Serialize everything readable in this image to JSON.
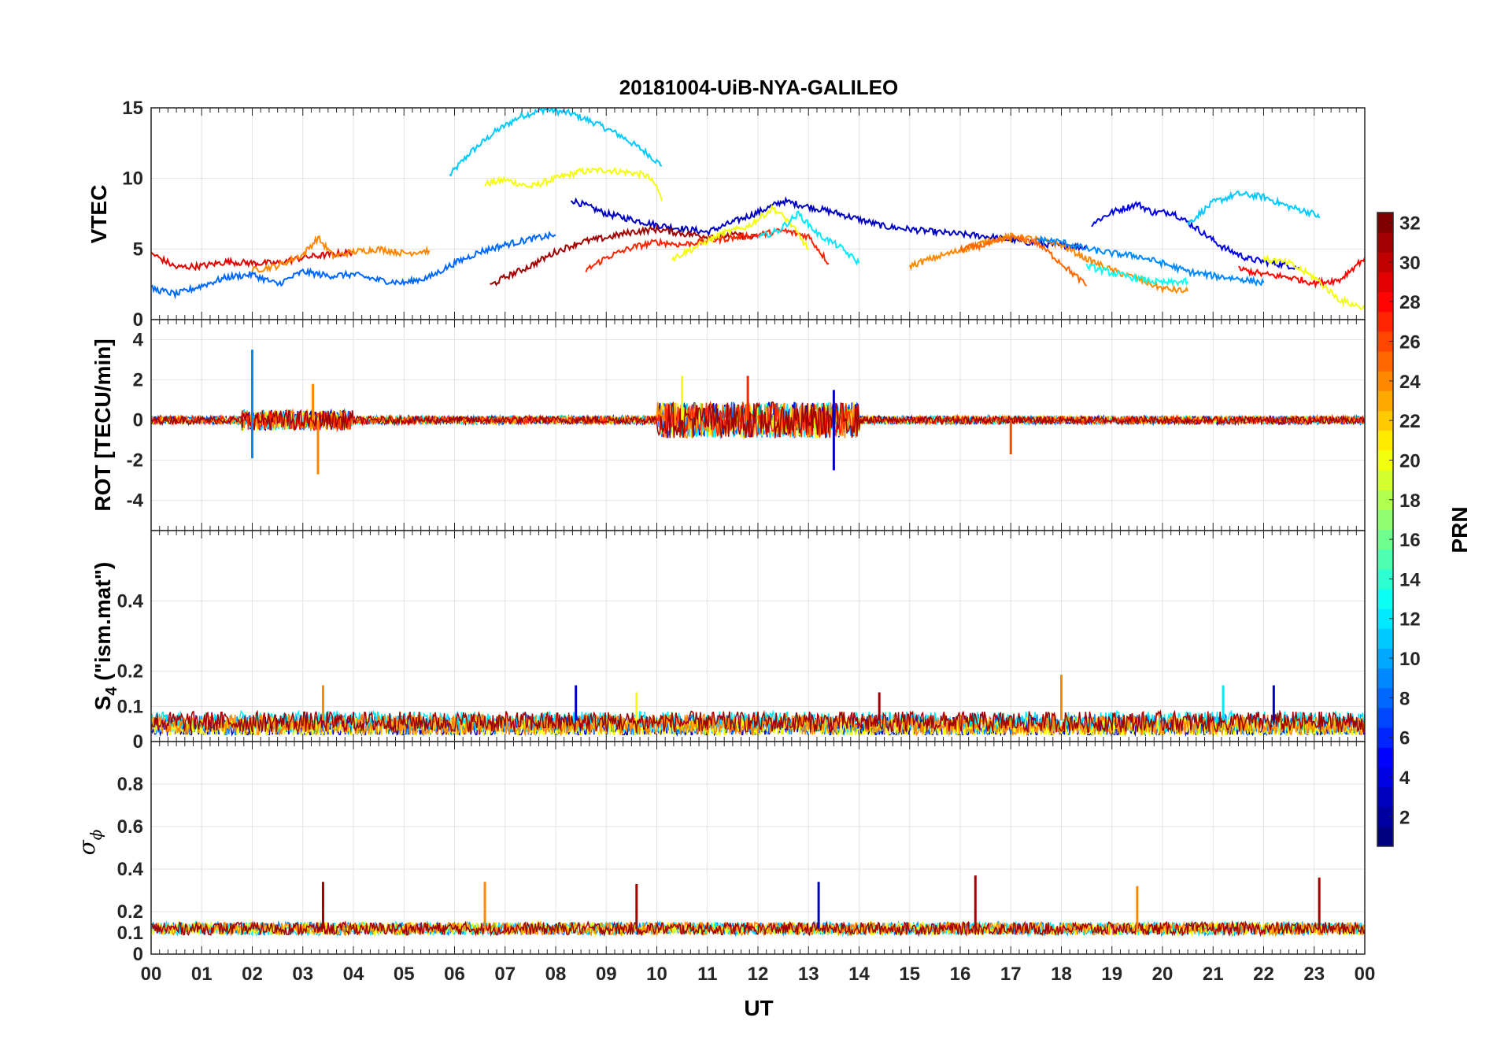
{
  "figure": {
    "title": "20181004-UiB-NYA-GALILEO",
    "xlabel": "UT",
    "x_tick_labels": [
      "00",
      "01",
      "02",
      "03",
      "04",
      "05",
      "06",
      "07",
      "08",
      "09",
      "10",
      "11",
      "12",
      "13",
      "14",
      "15",
      "16",
      "17",
      "18",
      "19",
      "20",
      "21",
      "22",
      "23",
      "00"
    ],
    "colorbar": {
      "label": "PRN",
      "range": [
        1,
        32
      ],
      "colormap": "jet",
      "tick_labels": [
        "2",
        "4",
        "6",
        "8",
        "10",
        "12",
        "14",
        "16",
        "18",
        "20",
        "22",
        "24",
        "26",
        "28",
        "30",
        "32"
      ]
    },
    "grid": true
  },
  "chart_data": [
    {
      "type": "line",
      "panel": "vtec",
      "ylabel": "VTEC",
      "ylim": [
        0,
        15
      ],
      "y_tick_labels": [
        "0",
        "5",
        "10",
        "15"
      ],
      "xlim": [
        0,
        24
      ],
      "series": [
        {
          "prn": 11,
          "x": [
            5.9,
            6.3,
            6.8,
            7.3,
            7.8,
            8.3,
            8.8,
            9.3,
            9.8,
            10.1
          ],
          "y": [
            10.2,
            11.8,
            13.3,
            14.4,
            14.9,
            14.6,
            13.9,
            13.0,
            11.8,
            10.9
          ]
        },
        {
          "prn": 20,
          "x": [
            6.6,
            7.0,
            7.5,
            8.0,
            8.5,
            9.0,
            9.5,
            9.8,
            10.0,
            10.1
          ],
          "y": [
            9.6,
            9.9,
            9.4,
            10.0,
            10.5,
            10.6,
            10.4,
            10.2,
            9.4,
            8.4
          ]
        },
        {
          "prn": 3,
          "x": [
            8.3,
            9.0,
            10.0,
            11.0,
            12.0,
            12.5,
            13.0,
            13.5,
            14.5,
            15.5,
            16.5,
            17.5,
            18.5
          ],
          "y": [
            8.5,
            7.5,
            6.7,
            6.2,
            7.6,
            8.4,
            8.0,
            7.6,
            6.6,
            6.2,
            5.9,
            5.4,
            5.1
          ]
        },
        {
          "prn": 4,
          "x": [
            18.6,
            19.0,
            19.5,
            19.8,
            20.2,
            20.7,
            21.2,
            21.7,
            22.2,
            22.7
          ],
          "y": [
            6.8,
            7.6,
            8.2,
            7.6,
            7.6,
            6.4,
            5.1,
            4.3,
            4.0,
            3.7
          ]
        },
        {
          "prn": 11,
          "x": [
            20.5,
            21.0,
            21.5,
            22.0,
            22.5,
            23.0,
            23.1
          ],
          "y": [
            6.8,
            8.3,
            8.9,
            8.7,
            8.0,
            7.5,
            7.2
          ]
        },
        {
          "prn": 29,
          "x": [
            0.0,
            0.5,
            1.0,
            1.5,
            2.0,
            2.5,
            3.0,
            3.5,
            4.0
          ],
          "y": [
            4.7,
            3.7,
            3.8,
            4.1,
            4.0,
            4.0,
            4.4,
            4.6,
            4.8
          ]
        },
        {
          "prn": 24,
          "x": [
            2.0,
            2.5,
            3.0,
            3.3,
            3.6,
            4.0,
            4.5,
            5.0,
            5.5
          ],
          "y": [
            3.5,
            3.8,
            4.6,
            5.8,
            4.5,
            4.8,
            5.0,
            4.7,
            4.9
          ]
        },
        {
          "prn": 8,
          "x": [
            0.0,
            0.5,
            1.0,
            1.5,
            2.0,
            2.5,
            3.0,
            3.5,
            4.0,
            4.5,
            5.0,
            5.5,
            6.0,
            6.5,
            7.0,
            7.5,
            8.0
          ],
          "y": [
            2.2,
            1.8,
            2.4,
            3.0,
            3.2,
            2.5,
            3.4,
            3.1,
            3.2,
            2.8,
            2.6,
            3.0,
            4.0,
            4.8,
            5.3,
            5.7,
            6.0
          ]
        },
        {
          "prn": 31,
          "x": [
            6.7,
            7.0,
            7.5,
            8.0,
            8.5,
            9.0,
            9.5,
            10.0,
            10.5,
            11.0,
            11.5,
            12.0
          ],
          "y": [
            2.4,
            3.0,
            3.8,
            4.8,
            5.5,
            5.8,
            6.2,
            6.4,
            6.1,
            5.9,
            6.0,
            5.8
          ]
        },
        {
          "prn": 27,
          "x": [
            8.6,
            9.0,
            9.5,
            10.0,
            10.5,
            11.0,
            11.5,
            12.0,
            12.5,
            13.0,
            13.4
          ],
          "y": [
            3.5,
            4.4,
            5.1,
            5.5,
            5.3,
            5.6,
            5.8,
            6.0,
            6.3,
            5.9,
            4.0
          ]
        },
        {
          "prn": 20,
          "x": [
            10.3,
            10.8,
            11.3,
            11.8,
            12.3,
            12.6,
            13.0
          ],
          "y": [
            4.3,
            5.2,
            6.1,
            6.6,
            7.9,
            7.0,
            5.0
          ]
        },
        {
          "prn": 12,
          "x": [
            12.0,
            12.4,
            12.8,
            13.2,
            13.6,
            14.0
          ],
          "y": [
            5.8,
            6.3,
            7.5,
            6.0,
            5.2,
            4.0
          ]
        },
        {
          "prn": 24,
          "x": [
            15.0,
            15.5,
            16.0,
            16.5,
            17.0,
            17.5,
            18.0,
            18.5,
            19.0,
            19.5,
            20.0,
            20.5
          ],
          "y": [
            3.8,
            4.4,
            4.9,
            5.5,
            5.9,
            5.7,
            5.3,
            4.3,
            3.5,
            2.9,
            2.2,
            2.0
          ]
        },
        {
          "prn": 25,
          "x": [
            16.0,
            16.5,
            17.0,
            17.5,
            18.0,
            18.5
          ],
          "y": [
            5.0,
            5.3,
            5.8,
            5.5,
            4.0,
            2.4
          ]
        },
        {
          "prn": 9,
          "x": [
            17.5,
            18.0,
            18.5,
            19.0,
            19.5,
            20.0,
            20.5,
            21.0,
            21.5,
            22.0
          ],
          "y": [
            5.7,
            5.5,
            5.0,
            4.7,
            4.5,
            4.0,
            3.4,
            3.1,
            2.9,
            2.6
          ]
        },
        {
          "prn": 13,
          "x": [
            18.5,
            19.0,
            19.5,
            20.0,
            20.5
          ],
          "y": [
            3.8,
            3.3,
            2.9,
            2.6,
            2.7
          ]
        },
        {
          "prn": 28,
          "x": [
            21.5,
            22.0,
            22.5,
            23.0,
            23.5,
            24.0
          ],
          "y": [
            3.6,
            3.2,
            3.0,
            2.6,
            2.8,
            4.4
          ]
        },
        {
          "prn": 20,
          "x": [
            22.0,
            22.5,
            23.0,
            23.5,
            24.0
          ],
          "y": [
            4.3,
            4.0,
            3.0,
            1.4,
            0.8
          ]
        }
      ]
    },
    {
      "type": "line",
      "panel": "rot",
      "ylabel": "ROT [TECU/min]",
      "ylim": [
        -5.5,
        5
      ],
      "y_tick_labels": [
        "-4",
        "-2",
        "0",
        "2",
        "4"
      ],
      "xlim": [
        0,
        24
      ],
      "series_prns": [
        3,
        8,
        12,
        20,
        24,
        27,
        31
      ],
      "spikes": [
        {
          "x": 2.0,
          "y": 3.5,
          "prn": 9
        },
        {
          "x": 2.0,
          "y": -1.9,
          "prn": 9
        },
        {
          "x": 3.2,
          "y": 1.8,
          "prn": 24
        },
        {
          "x": 3.3,
          "y": -2.7,
          "prn": 24
        },
        {
          "x": 10.5,
          "y": 2.2,
          "prn": 20
        },
        {
          "x": 11.8,
          "y": 2.2,
          "prn": 27
        },
        {
          "x": 13.5,
          "y": 1.5,
          "prn": 3
        },
        {
          "x": 13.5,
          "y": -2.5,
          "prn": 3
        },
        {
          "x": 17.0,
          "y": -1.7,
          "prn": 26
        }
      ]
    },
    {
      "type": "line",
      "panel": "s4",
      "ylabel_main": "S",
      "ylabel_sub": "4",
      "ylabel_rest": " (\"ism.mat\")",
      "ylim": [
        0,
        0.6
      ],
      "y_tick_labels": [
        "0",
        "0.1",
        "0.2",
        "0.4"
      ],
      "xlim": [
        0,
        24
      ],
      "series_prns": [
        3,
        9,
        12,
        20,
        24,
        31
      ],
      "peaks": [
        {
          "x": 3.4,
          "y": 0.16,
          "prn": 24
        },
        {
          "x": 8.4,
          "y": 0.16,
          "prn": 3
        },
        {
          "x": 9.6,
          "y": 0.14,
          "prn": 20
        },
        {
          "x": 14.4,
          "y": 0.14,
          "prn": 31
        },
        {
          "x": 18.0,
          "y": 0.19,
          "prn": 24
        },
        {
          "x": 21.2,
          "y": 0.16,
          "prn": 12
        },
        {
          "x": 22.2,
          "y": 0.16,
          "prn": 3
        }
      ]
    },
    {
      "type": "line",
      "panel": "sigma_phi",
      "ylabel_main": "σ",
      "ylabel_sub": "ϕ",
      "ylim": [
        0,
        1
      ],
      "y_tick_labels": [
        "0",
        "0.1",
        "0.2",
        "0.4",
        "0.6",
        "0.8"
      ],
      "xlim": [
        0,
        24
      ],
      "series_prns": [
        9,
        12,
        20,
        24,
        31
      ],
      "spikes": [
        {
          "x": 3.4,
          "y": 0.34,
          "prn": 31
        },
        {
          "x": 6.6,
          "y": 0.34,
          "prn": 24
        },
        {
          "x": 9.6,
          "y": 0.33,
          "prn": 31
        },
        {
          "x": 13.2,
          "y": 0.34,
          "prn": 3
        },
        {
          "x": 16.3,
          "y": 0.37,
          "prn": 31
        },
        {
          "x": 19.5,
          "y": 0.32,
          "prn": 24
        },
        {
          "x": 23.1,
          "y": 0.36,
          "prn": 31
        }
      ]
    }
  ]
}
